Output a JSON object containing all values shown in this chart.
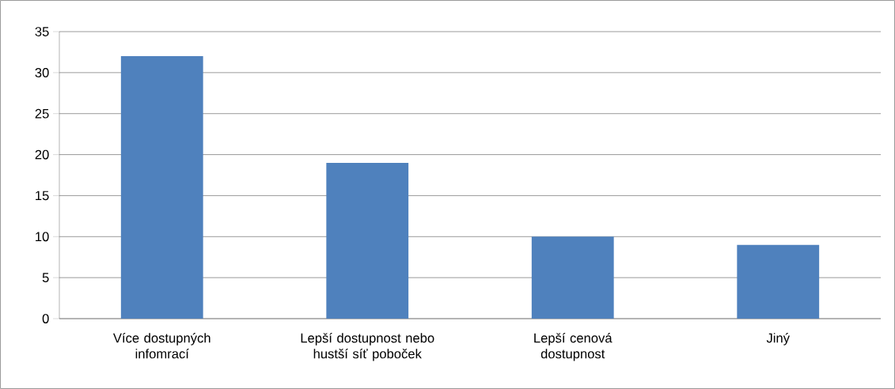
{
  "chart_data": {
    "type": "bar",
    "categories": [
      "Více dostupných infomrací",
      "Lepší dostupnost nebo hustší síť poboček",
      "Lepší cenová dostupnost",
      "Jiný"
    ],
    "values": [
      32,
      19,
      10,
      9
    ],
    "color": "#4f81bd",
    "ylim": [
      0,
      35
    ],
    "yticks": [
      0,
      5,
      10,
      15,
      20,
      25,
      30,
      35
    ],
    "grid": "y"
  }
}
